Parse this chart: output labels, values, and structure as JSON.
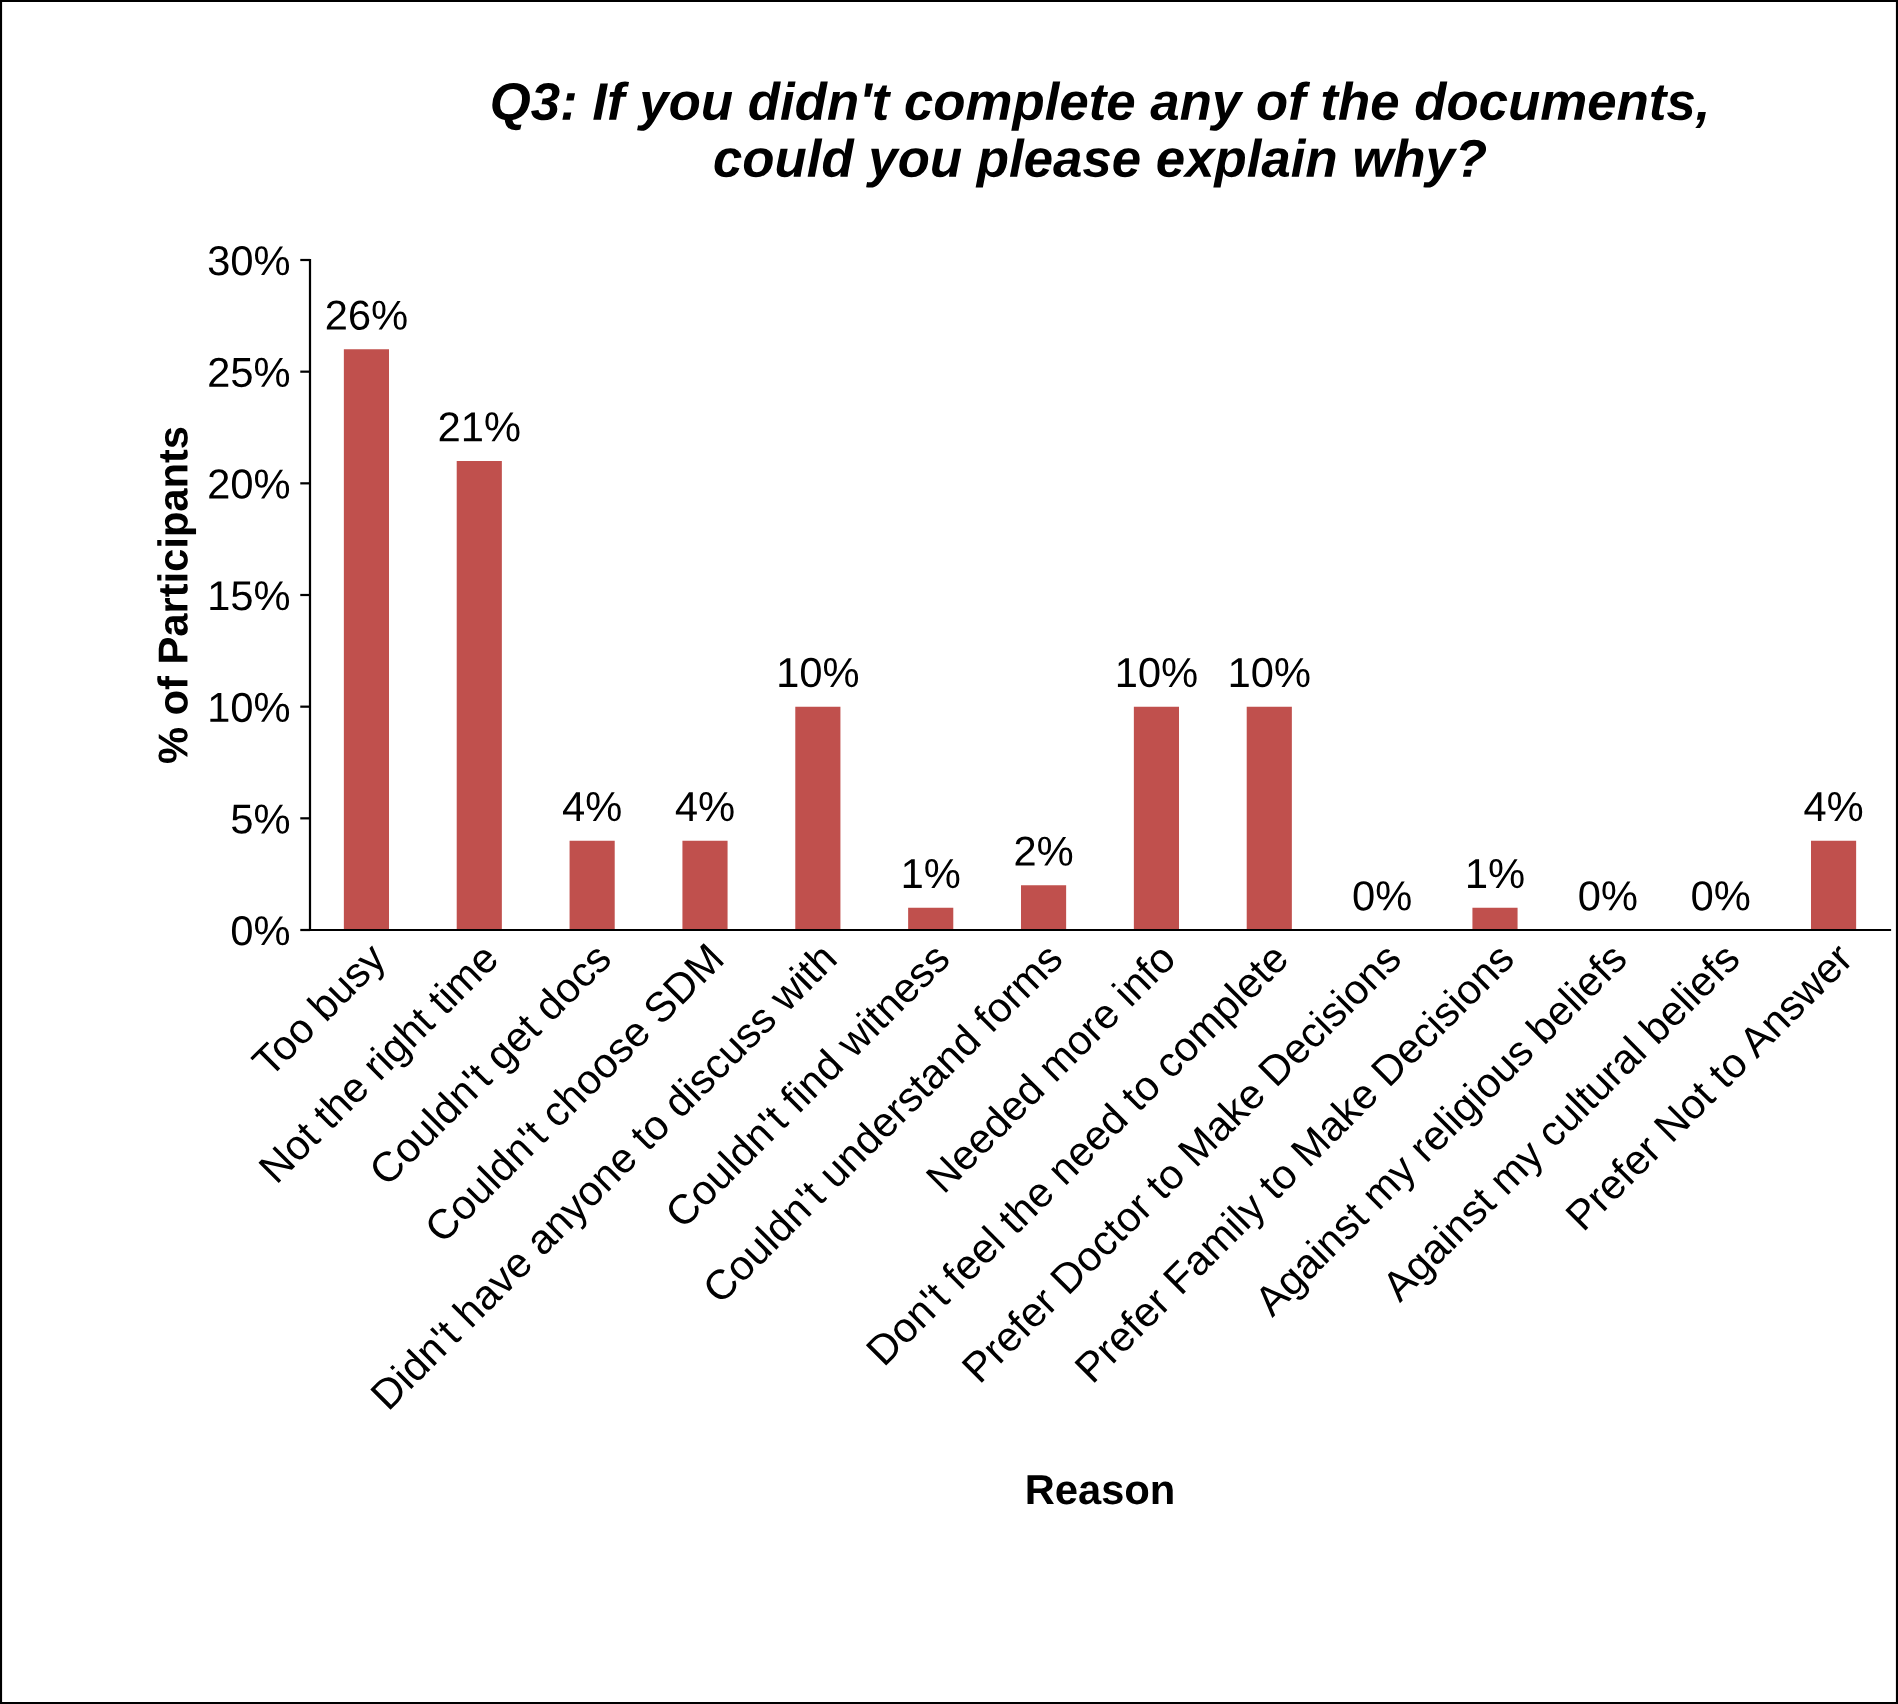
{
  "chart_data": {
    "type": "bar",
    "title": "Q3: If you didn't complete any of the documents,\ncould you please explain why?",
    "xlabel": "Reason",
    "ylabel": "% of Participants",
    "categories": [
      "Too busy",
      "Not the right time",
      "Couldn't get docs",
      "Couldn't choose SDM",
      "Didn't have anyone to discuss with",
      "Couldn't find witness",
      "Couldn't understand forms",
      "Needed more info",
      "Don't feel the need to complete",
      "Prefer Doctor to Make Decisions",
      "Prefer Family to Make Decisions",
      "Against my religious beliefs",
      "Against my cultural beliefs",
      "Prefer Not to Answer"
    ],
    "values": [
      26,
      21,
      4,
      4,
      10,
      1,
      2,
      10,
      10,
      0,
      1,
      0,
      0,
      4
    ],
    "value_labels": [
      "26%",
      "21%",
      "4%",
      "4%",
      "10%",
      "1%",
      "2%",
      "10%",
      "10%",
      "0%",
      "1%",
      "0%",
      "0%",
      "4%"
    ],
    "color": "#c0504d",
    "ylim": [
      0,
      30
    ],
    "yticks": [
      {
        "value": 0,
        "label": "0%"
      },
      {
        "value": 5,
        "label": "5%"
      },
      {
        "value": 10,
        "label": "10%"
      },
      {
        "value": 15,
        "label": "15%"
      },
      {
        "value": 20,
        "label": "20%"
      },
      {
        "value": 25,
        "label": "25%"
      },
      {
        "value": 30,
        "label": "30%"
      }
    ],
    "grid": false,
    "legend": false
  }
}
